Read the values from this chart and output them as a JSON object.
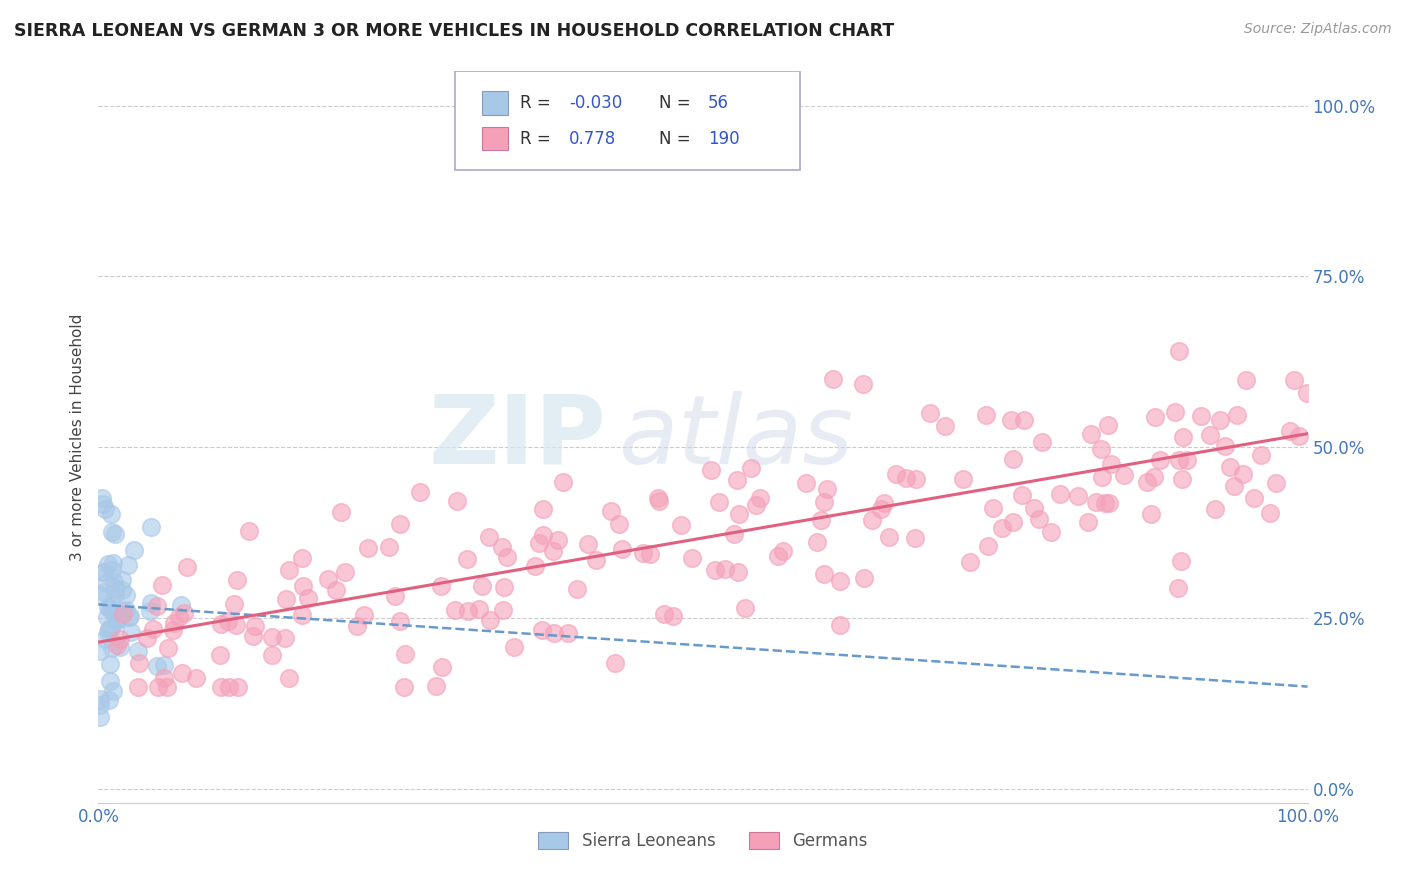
{
  "title": "SIERRA LEONEAN VS GERMAN 3 OR MORE VEHICLES IN HOUSEHOLD CORRELATION CHART",
  "source": "Source: ZipAtlas.com",
  "ylabel": "3 or more Vehicles in Household",
  "xlim": [
    0.0,
    1.0
  ],
  "ylim": [
    -0.02,
    1.05
  ],
  "yticks": [
    0.0,
    0.25,
    0.5,
    0.75,
    1.0
  ],
  "ytick_labels": [
    "0.0%",
    "25.0%",
    "50.0%",
    "75.0%",
    "100.0%"
  ],
  "color_sl": "#a8c8e8",
  "color_g": "#f4a0b8",
  "color_sl_line": "#6699cc",
  "color_g_line": "#e06080",
  "watermark_zip": "ZIP",
  "watermark_atlas": "atlas",
  "background_color": "#ffffff",
  "grid_color": "#cccccc",
  "tick_color": "#4477bb",
  "sl_r": -0.03,
  "sl_n": 56,
  "g_r": 0.778,
  "g_n": 190,
  "sl_line_x0": 0.0,
  "sl_line_x1": 1.0,
  "sl_line_y0": 0.27,
  "sl_line_y1": 0.15,
  "g_line_x0": 0.0,
  "g_line_x1": 1.0,
  "g_line_y0": 0.215,
  "g_line_y1": 0.52
}
